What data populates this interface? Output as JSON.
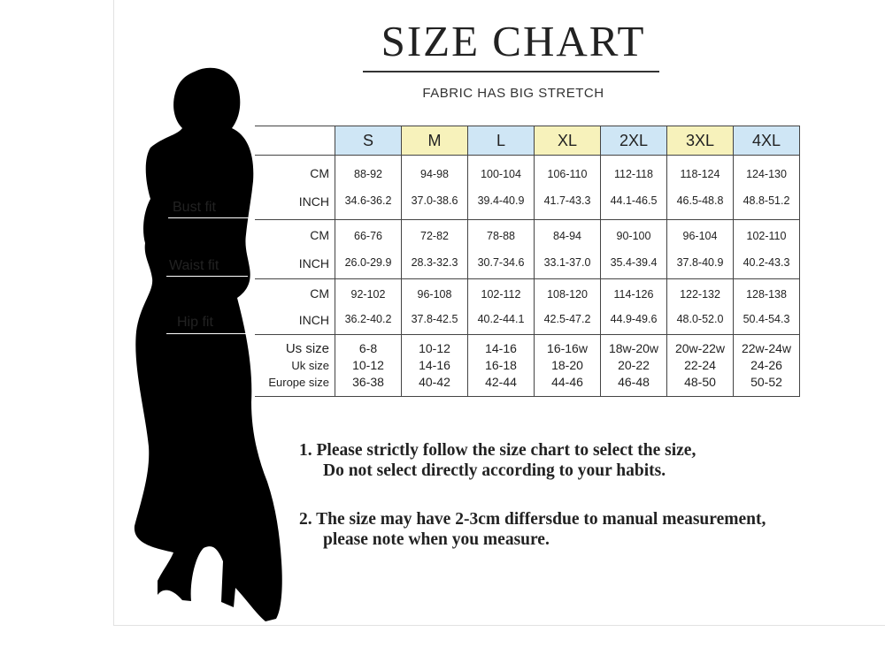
{
  "title": "SIZE CHART",
  "subtitle": "FABRIC HAS BIG STRETCH",
  "fit_labels": [
    "Bust fit",
    "Waist fit",
    "Hip fit"
  ],
  "header_colors": {
    "blue": "#cfe6f5",
    "yellow": "#f7f2bb"
  },
  "sizes": [
    "S",
    "M",
    "L",
    "XL",
    "2XL",
    "3XL",
    "4XL"
  ],
  "sections": [
    {
      "name": "Bust fit",
      "rows": [
        {
          "unit": "CM",
          "values": [
            "88-92",
            "94-98",
            "100-104",
            "106-110",
            "112-118",
            "118-124",
            "124-130"
          ]
        },
        {
          "unit": "INCH",
          "values": [
            "34.6-36.2",
            "37.0-38.6",
            "39.4-40.9",
            "41.7-43.3",
            "44.1-46.5",
            "46.5-48.8",
            "48.8-51.2"
          ]
        }
      ]
    },
    {
      "name": "Waist fit",
      "rows": [
        {
          "unit": "CM",
          "values": [
            "66-76",
            "72-82",
            "78-88",
            "84-94",
            "90-100",
            "96-104",
            "102-110"
          ]
        },
        {
          "unit": "INCH",
          "values": [
            "26.0-29.9",
            "28.3-32.3",
            "30.7-34.6",
            "33.1-37.0",
            "35.4-39.4",
            "37.8-40.9",
            "40.2-43.3"
          ]
        }
      ]
    },
    {
      "name": "Hip fit",
      "rows": [
        {
          "unit": "CM",
          "values": [
            "92-102",
            "96-108",
            "102-112",
            "108-120",
            "114-126",
            "122-132",
            "128-138"
          ]
        },
        {
          "unit": "INCH",
          "values": [
            "36.2-40.2",
            "37.8-42.5",
            "40.2-44.1",
            "42.5-47.2",
            "44.9-49.6",
            "48.0-52.0",
            "50.4-54.3"
          ]
        }
      ]
    }
  ],
  "conversion": [
    {
      "label": "Us size",
      "values": [
        "6-8",
        "10-12",
        "14-16",
        "16-16w",
        "18w-20w",
        "20w-22w",
        "22w-24w"
      ]
    },
    {
      "label": "Uk size",
      "values": [
        "10-12",
        "14-16",
        "16-18",
        "18-20",
        "20-22",
        "22-24",
        "24-26"
      ]
    },
    {
      "label": "Europe size",
      "values": [
        "36-38",
        "40-42",
        "42-44",
        "44-46",
        "46-48",
        "48-50",
        "50-52"
      ]
    }
  ],
  "notes": [
    {
      "line1": "1.  Please strictly follow the size chart to select the size,",
      "line2": "Do not select directly according to your habits."
    },
    {
      "line1": "2.  The size may have 2-3cm differsdue to manual measurement,",
      "line2": "please note when you measure."
    }
  ]
}
